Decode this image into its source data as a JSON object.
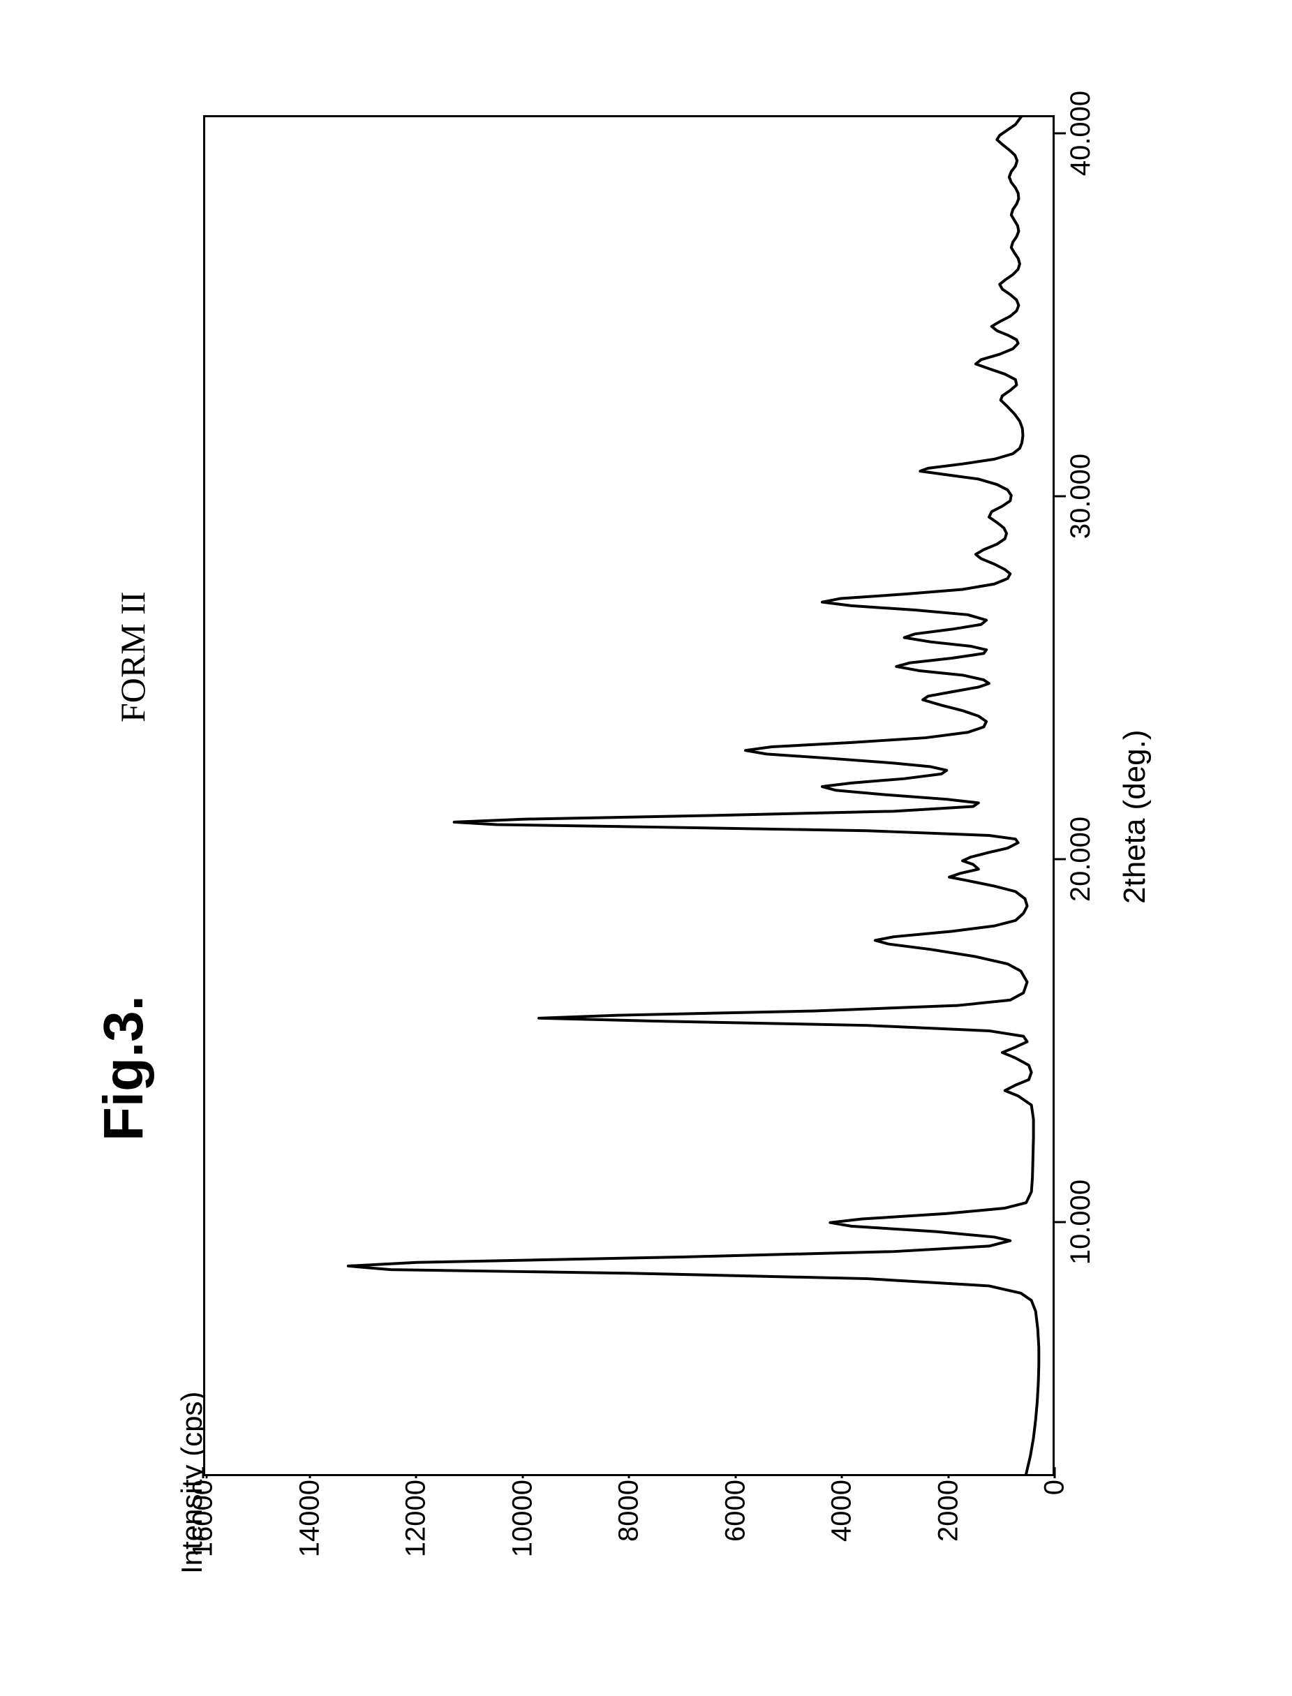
{
  "figure": {
    "label": "Fig.3.",
    "title": "FORM II",
    "y_axis_title": "Intensity (cps)",
    "x_axis_title": "2theta (deg.)",
    "y_ticks": [
      0,
      2000,
      4000,
      6000,
      8000,
      10000,
      12000,
      14000,
      16000
    ],
    "x_ticks": [
      10.0,
      20.0,
      30.0,
      40.0
    ],
    "xlim": [
      3.0,
      40.5
    ],
    "ylim": [
      0,
      16000
    ],
    "line_color": "#000000",
    "line_width": 4,
    "background_color": "#ffffff",
    "border_color": "#000000",
    "label_fontsize": 40,
    "title_fontsize": 50,
    "fig_label_fontsize": 80,
    "data": [
      [
        3.0,
        500
      ],
      [
        3.5,
        420
      ],
      [
        4.0,
        360
      ],
      [
        4.5,
        320
      ],
      [
        5.0,
        290
      ],
      [
        5.5,
        270
      ],
      [
        6.0,
        260
      ],
      [
        6.5,
        260
      ],
      [
        7.0,
        280
      ],
      [
        7.5,
        320
      ],
      [
        7.8,
        400
      ],
      [
        8.0,
        600
      ],
      [
        8.2,
        1200
      ],
      [
        8.4,
        3500
      ],
      [
        8.55,
        8000
      ],
      [
        8.65,
        12500
      ],
      [
        8.75,
        13300
      ],
      [
        8.85,
        12000
      ],
      [
        9.0,
        7000
      ],
      [
        9.15,
        3000
      ],
      [
        9.3,
        1200
      ],
      [
        9.45,
        800
      ],
      [
        9.55,
        1100
      ],
      [
        9.7,
        2200
      ],
      [
        9.85,
        3800
      ],
      [
        9.95,
        4200
      ],
      [
        10.05,
        3600
      ],
      [
        10.2,
        2000
      ],
      [
        10.35,
        900
      ],
      [
        10.5,
        500
      ],
      [
        10.8,
        400
      ],
      [
        11.2,
        380
      ],
      [
        11.8,
        370
      ],
      [
        12.3,
        360
      ],
      [
        12.8,
        360
      ],
      [
        13.2,
        400
      ],
      [
        13.45,
        650
      ],
      [
        13.6,
        900
      ],
      [
        13.75,
        700
      ],
      [
        13.9,
        450
      ],
      [
        14.1,
        400
      ],
      [
        14.3,
        450
      ],
      [
        14.5,
        700
      ],
      [
        14.65,
        950
      ],
      [
        14.8,
        700
      ],
      [
        14.95,
        480
      ],
      [
        15.1,
        550
      ],
      [
        15.25,
        1200
      ],
      [
        15.4,
        3500
      ],
      [
        15.52,
        7500
      ],
      [
        15.6,
        9700
      ],
      [
        15.68,
        8200
      ],
      [
        15.8,
        4500
      ],
      [
        15.95,
        1800
      ],
      [
        16.1,
        800
      ],
      [
        16.3,
        550
      ],
      [
        16.6,
        480
      ],
      [
        16.9,
        600
      ],
      [
        17.1,
        850
      ],
      [
        17.3,
        1450
      ],
      [
        17.5,
        2300
      ],
      [
        17.65,
        3100
      ],
      [
        17.75,
        3350
      ],
      [
        17.85,
        3000
      ],
      [
        18.0,
        1900
      ],
      [
        18.15,
        1100
      ],
      [
        18.3,
        700
      ],
      [
        18.5,
        550
      ],
      [
        18.7,
        480
      ],
      [
        18.9,
        520
      ],
      [
        19.1,
        700
      ],
      [
        19.25,
        1100
      ],
      [
        19.4,
        1600
      ],
      [
        19.5,
        1950
      ],
      [
        19.6,
        1750
      ],
      [
        19.72,
        1400
      ],
      [
        19.85,
        1500
      ],
      [
        19.95,
        1700
      ],
      [
        20.05,
        1550
      ],
      [
        20.18,
        1200
      ],
      [
        20.3,
        850
      ],
      [
        20.45,
        650
      ],
      [
        20.55,
        700
      ],
      [
        20.65,
        1200
      ],
      [
        20.78,
        3500
      ],
      [
        20.88,
        7500
      ],
      [
        20.95,
        10500
      ],
      [
        21.02,
        11300
      ],
      [
        21.1,
        10000
      ],
      [
        21.2,
        6500
      ],
      [
        21.32,
        3000
      ],
      [
        21.45,
        1500
      ],
      [
        21.55,
        1400
      ],
      [
        21.65,
        2000
      ],
      [
        21.78,
        3200
      ],
      [
        21.9,
        4100
      ],
      [
        22.0,
        4350
      ],
      [
        22.1,
        3800
      ],
      [
        22.22,
        2800
      ],
      [
        22.35,
        2100
      ],
      [
        22.45,
        2000
      ],
      [
        22.55,
        2300
      ],
      [
        22.65,
        3000
      ],
      [
        22.78,
        4200
      ],
      [
        22.9,
        5400
      ],
      [
        23.0,
        5800
      ],
      [
        23.1,
        5300
      ],
      [
        23.22,
        3800
      ],
      [
        23.35,
        2400
      ],
      [
        23.5,
        1600
      ],
      [
        23.65,
        1300
      ],
      [
        23.8,
        1250
      ],
      [
        23.95,
        1400
      ],
      [
        24.1,
        1700
      ],
      [
        24.25,
        2100
      ],
      [
        24.4,
        2450
      ],
      [
        24.5,
        2350
      ],
      [
        24.62,
        1900
      ],
      [
        24.75,
        1400
      ],
      [
        24.85,
        1200
      ],
      [
        24.95,
        1300
      ],
      [
        25.08,
        1700
      ],
      [
        25.2,
        2500
      ],
      [
        25.32,
        2950
      ],
      [
        25.42,
        2700
      ],
      [
        25.55,
        1900
      ],
      [
        25.68,
        1300
      ],
      [
        25.78,
        1250
      ],
      [
        25.88,
        1550
      ],
      [
        26.0,
        2300
      ],
      [
        26.12,
        2800
      ],
      [
        26.22,
        2600
      ],
      [
        26.35,
        1900
      ],
      [
        26.48,
        1350
      ],
      [
        26.6,
        1250
      ],
      [
        26.75,
        1600
      ],
      [
        26.88,
        2600
      ],
      [
        27.0,
        3800
      ],
      [
        27.1,
        4350
      ],
      [
        27.2,
        4000
      ],
      [
        27.32,
        2800
      ],
      [
        27.45,
        1700
      ],
      [
        27.6,
        1100
      ],
      [
        27.75,
        850
      ],
      [
        27.88,
        800
      ],
      [
        28.0,
        900
      ],
      [
        28.15,
        1100
      ],
      [
        28.3,
        1350
      ],
      [
        28.42,
        1450
      ],
      [
        28.55,
        1300
      ],
      [
        28.7,
        1050
      ],
      [
        28.85,
        900
      ],
      [
        29.0,
        870
      ],
      [
        29.15,
        920
      ],
      [
        29.3,
        1050
      ],
      [
        29.45,
        1200
      ],
      [
        29.6,
        1150
      ],
      [
        29.75,
        950
      ],
      [
        29.9,
        800
      ],
      [
        30.05,
        780
      ],
      [
        30.2,
        850
      ],
      [
        30.35,
        1050
      ],
      [
        30.5,
        1400
      ],
      [
        30.62,
        2000
      ],
      [
        30.72,
        2500
      ],
      [
        30.8,
        2350
      ],
      [
        30.92,
        1700
      ],
      [
        31.05,
        1100
      ],
      [
        31.2,
        750
      ],
      [
        31.35,
        620
      ],
      [
        31.5,
        580
      ],
      [
        31.7,
        560
      ],
      [
        31.9,
        570
      ],
      [
        32.1,
        620
      ],
      [
        32.3,
        720
      ],
      [
        32.5,
        850
      ],
      [
        32.68,
        980
      ],
      [
        32.8,
        950
      ],
      [
        32.95,
        800
      ],
      [
        33.1,
        680
      ],
      [
        33.25,
        700
      ],
      [
        33.4,
        900
      ],
      [
        33.55,
        1200
      ],
      [
        33.68,
        1450
      ],
      [
        33.8,
        1350
      ],
      [
        33.95,
        1000
      ],
      [
        34.1,
        750
      ],
      [
        34.25,
        650
      ],
      [
        34.35,
        680
      ],
      [
        34.48,
        850
      ],
      [
        34.6,
        1050
      ],
      [
        34.72,
        1150
      ],
      [
        34.85,
        1000
      ],
      [
        35.0,
        800
      ],
      [
        35.15,
        680
      ],
      [
        35.3,
        640
      ],
      [
        35.45,
        680
      ],
      [
        35.6,
        800
      ],
      [
        35.75,
        950
      ],
      [
        35.88,
        1000
      ],
      [
        36.0,
        900
      ],
      [
        36.15,
        750
      ],
      [
        36.3,
        650
      ],
      [
        36.45,
        620
      ],
      [
        36.6,
        650
      ],
      [
        36.75,
        720
      ],
      [
        36.9,
        780
      ],
      [
        37.05,
        750
      ],
      [
        37.2,
        680
      ],
      [
        37.35,
        640
      ],
      [
        37.5,
        660
      ],
      [
        37.65,
        720
      ],
      [
        37.8,
        780
      ],
      [
        37.95,
        750
      ],
      [
        38.1,
        680
      ],
      [
        38.25,
        640
      ],
      [
        38.4,
        650
      ],
      [
        38.55,
        700
      ],
      [
        38.7,
        780
      ],
      [
        38.85,
        820
      ],
      [
        39.0,
        780
      ],
      [
        39.15,
        700
      ],
      [
        39.3,
        670
      ],
      [
        39.45,
        710
      ],
      [
        39.6,
        820
      ],
      [
        39.75,
        950
      ],
      [
        39.88,
        1050
      ],
      [
        40.0,
        1000
      ],
      [
        40.15,
        850
      ],
      [
        40.3,
        700
      ],
      [
        40.5,
        600
      ]
    ]
  }
}
